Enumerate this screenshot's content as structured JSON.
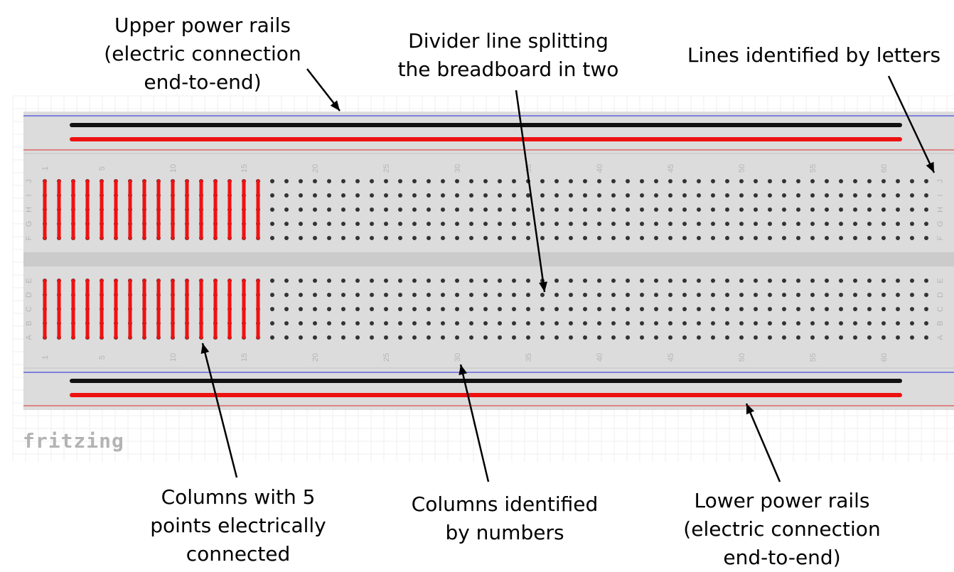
{
  "annotations": {
    "upper_rails": "Upper power rails\n(electric connection\nend-to-end)",
    "divider": "Divider line splitting\nthe breadboard in two",
    "letters": "Lines identified by letters",
    "five_points": "Columns with 5\npoints electrically\nconnected",
    "numbers": "Columns identified\nby numbers",
    "lower_rails": "Lower power rails\n(electric connection\nend-to-end)"
  },
  "brand": "fritzing",
  "breadboard": {
    "columns": 63,
    "highlighted_columns": 16,
    "column_numbers": [
      "1",
      "5",
      "10",
      "15",
      "20",
      "25",
      "30",
      "35",
      "40",
      "45",
      "50",
      "55",
      "60"
    ],
    "upper_rows": [
      "J",
      "I",
      "H",
      "G",
      "F"
    ],
    "lower_rows": [
      "E",
      "D",
      "C",
      "B",
      "A"
    ]
  },
  "colors": {
    "board": "#dcdcdc",
    "grid": "#efefef",
    "hole": "#333333",
    "wire_red": "#ee1111",
    "wire_black": "#111111",
    "rail_line_blue": "#4a4adc",
    "rail_line_red": "#e05050",
    "label_gray": "#b5b5b5"
  }
}
